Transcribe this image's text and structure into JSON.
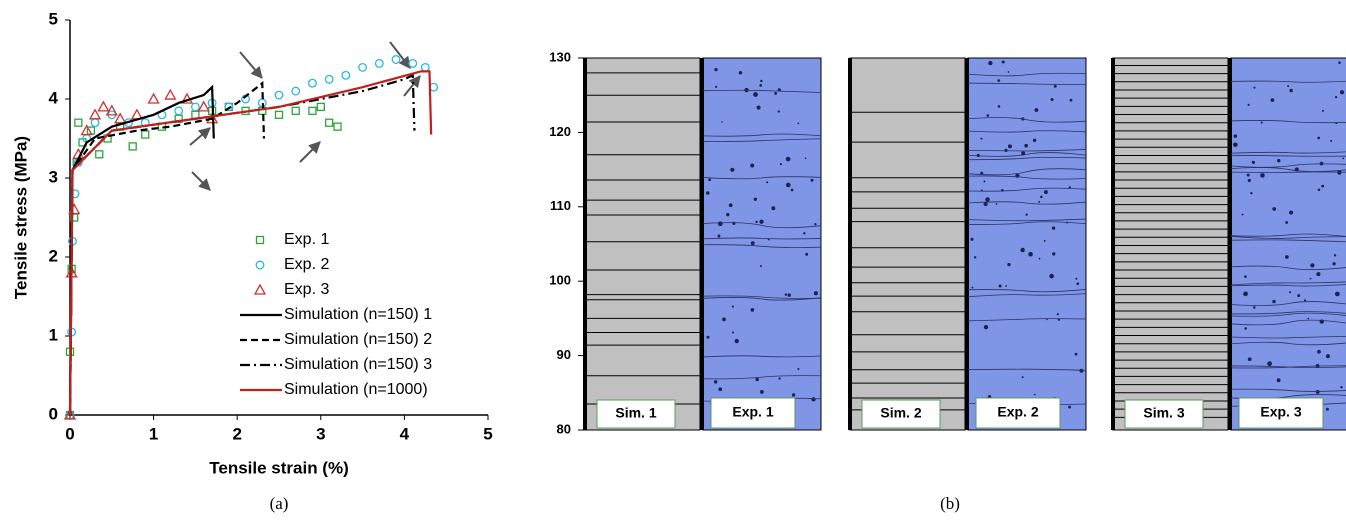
{
  "chart_data": [
    {
      "type": "line",
      "panel_label": "(a)",
      "xlabel": "Tensile strain (%)",
      "ylabel": "Tensile stress (MPa)",
      "xlim": [
        0,
        5
      ],
      "ylim": [
        0,
        5
      ],
      "xticks": [
        0,
        1,
        2,
        3,
        4,
        5
      ],
      "yticks": [
        0,
        1,
        2,
        3,
        4,
        5
      ],
      "series": [
        {
          "name": "Exp. 1",
          "kind": "scatter",
          "marker": "square",
          "color": "#2aa63a",
          "x": [
            0,
            0,
            0.02,
            0.05,
            0.08,
            0.1,
            0.15,
            0.25,
            0.35,
            0.45,
            0.6,
            0.75,
            0.9,
            1.1,
            1.3,
            1.5,
            1.7,
            1.9,
            2.1,
            2.3,
            2.5,
            2.7,
            2.9,
            3.0,
            3.1,
            3.2
          ],
          "values": [
            0,
            0.8,
            1.85,
            2.5,
            3.2,
            3.7,
            3.45,
            3.6,
            3.3,
            3.5,
            3.65,
            3.4,
            3.55,
            3.65,
            3.75,
            3.8,
            3.85,
            3.9,
            3.85,
            3.85,
            3.8,
            3.85,
            3.85,
            3.9,
            3.7,
            3.65
          ]
        },
        {
          "name": "Exp. 2",
          "kind": "scatter",
          "marker": "circle",
          "color": "#29b6e8",
          "x": [
            0,
            0.02,
            0.03,
            0.06,
            0.1,
            0.2,
            0.3,
            0.5,
            0.7,
            0.9,
            1.1,
            1.3,
            1.5,
            1.7,
            1.9,
            2.1,
            2.3,
            2.5,
            2.7,
            2.9,
            3.1,
            3.3,
            3.5,
            3.7,
            3.9,
            4.1,
            4.25,
            4.35
          ],
          "values": [
            0,
            1.05,
            2.2,
            2.8,
            3.2,
            3.5,
            3.7,
            3.8,
            3.7,
            3.7,
            3.8,
            3.85,
            3.9,
            3.95,
            3.9,
            4.0,
            3.95,
            4.05,
            4.1,
            4.2,
            4.25,
            4.3,
            4.4,
            4.45,
            4.5,
            4.45,
            4.4,
            4.15
          ]
        },
        {
          "name": "Exp. 3",
          "kind": "scatter",
          "marker": "triangle",
          "color": "#d0312d",
          "x": [
            0,
            0.02,
            0.05,
            0.1,
            0.2,
            0.3,
            0.4,
            0.5,
            0.6,
            0.8,
            1.0,
            1.2,
            1.4,
            1.6,
            1.7
          ],
          "values": [
            0,
            1.8,
            2.6,
            3.3,
            3.6,
            3.8,
            3.9,
            3.85,
            3.75,
            3.8,
            4.0,
            4.05,
            4.0,
            3.9,
            3.75
          ]
        },
        {
          "name": "Simulation (n=150) 1",
          "kind": "line",
          "dash": "solid",
          "color": "#000000",
          "x": [
            0,
            0.03,
            0.2,
            0.5,
            1.0,
            1.3,
            1.6,
            1.7,
            1.72
          ],
          "values": [
            0,
            3.1,
            3.45,
            3.65,
            3.8,
            3.95,
            4.05,
            4.15,
            3.5
          ]
        },
        {
          "name": "Simulation (n=150) 2",
          "kind": "line",
          "dash": "dashed",
          "color": "#000000",
          "x": [
            0,
            0.03,
            0.3,
            0.8,
            1.2,
            1.7,
            2.0,
            2.3,
            2.32
          ],
          "values": [
            0,
            3.1,
            3.5,
            3.6,
            3.65,
            3.75,
            3.95,
            4.2,
            3.5
          ]
        },
        {
          "name": "Simulation (n=150) 3",
          "kind": "line",
          "dash": "dashdot",
          "color": "#000000",
          "x": [
            0,
            0.03,
            0.5,
            1.5,
            2.5,
            3.5,
            4.0,
            4.1,
            4.12
          ],
          "values": [
            0,
            3.1,
            3.6,
            3.75,
            3.9,
            4.1,
            4.25,
            4.3,
            3.6
          ]
        },
        {
          "name": "Simulation (n=1000)",
          "kind": "line",
          "dash": "solid",
          "color": "#c0211f",
          "x": [
            0,
            0.03,
            0.5,
            1.5,
            2.5,
            3.5,
            4.2,
            4.3,
            4.32
          ],
          "values": [
            0,
            3.1,
            3.6,
            3.75,
            3.9,
            4.15,
            4.35,
            4.35,
            3.55
          ]
        }
      ]
    },
    {
      "type": "strip",
      "panel_label": "(b)",
      "ylim": [
        80,
        130
      ],
      "yticks": [
        80,
        90,
        100,
        110,
        120,
        130
      ],
      "groups": [
        {
          "name": "Sim. 1",
          "photo_label": "Exp. 1",
          "values": [
            128.0,
            125.0,
            121.4,
            117.0,
            113.6,
            110.9,
            108.9,
            105.3,
            101.5,
            98.2,
            97.5,
            95.0,
            93.1,
            91.4,
            87.3,
            83.5
          ]
        },
        {
          "name": "Sim. 2",
          "photo_label": "Exp. 2",
          "values": [
            122.7,
            118.7,
            113.9,
            112.0,
            109.8,
            108.0,
            104.5,
            101.9,
            99.8,
            98.0,
            95.9,
            92.8,
            90.5,
            88.1,
            86.3,
            84.3,
            82.7
          ]
        },
        {
          "name": "Sim. 3",
          "photo_label": "Exp. 3",
          "values": [
            129.0,
            127.9,
            126.8,
            125.7,
            124.6,
            123.5,
            122.4,
            121.3,
            120.2,
            119.1,
            118.0,
            116.9,
            115.8,
            114.7,
            113.6,
            112.5,
            111.4,
            110.3,
            109.2,
            108.1,
            107.0,
            105.9,
            104.8,
            103.7,
            102.6,
            101.5,
            100.4,
            99.3,
            98.2,
            97.1,
            96.0,
            94.9,
            93.8,
            92.7,
            91.6,
            90.5,
            89.4,
            88.3,
            87.2,
            86.1,
            85.0,
            83.9,
            82.8,
            81.7
          ]
        }
      ]
    }
  ]
}
